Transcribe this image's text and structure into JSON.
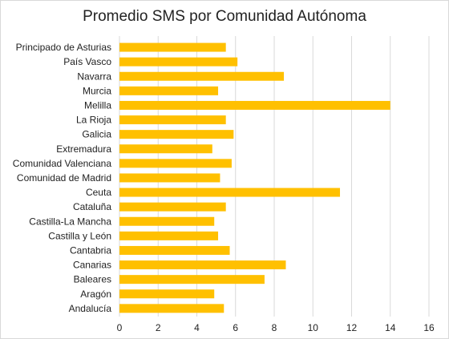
{
  "chart_data": {
    "type": "bar",
    "orientation": "horizontal",
    "title": "Promedio SMS por Comunidad Autónoma",
    "xlabel": "",
    "ylabel": "",
    "xlim": [
      0,
      16
    ],
    "xticks": [
      0,
      2,
      4,
      6,
      8,
      10,
      12,
      14,
      16
    ],
    "grid": "vertical",
    "legend": "none",
    "bar_color": "#FFC000",
    "grid_color": "#D9D9D9",
    "categories": [
      "Principado de Asturias",
      "País Vasco",
      "Navarra",
      "Murcia",
      "Melilla",
      "La Rioja",
      "Galicia",
      "Extremadura",
      "Comunidad Valenciana",
      "Comunidad de Madrid",
      "Ceuta",
      "Cataluña",
      "Castilla-La Mancha",
      "Castilla y León",
      "Cantabria",
      "Canarias",
      "Baleares",
      "Aragón",
      "Andalucía"
    ],
    "values": [
      5.5,
      6.1,
      8.5,
      5.1,
      14.0,
      5.5,
      5.9,
      4.8,
      5.8,
      5.2,
      11.4,
      5.5,
      4.9,
      5.1,
      5.7,
      8.6,
      7.5,
      4.9,
      5.4
    ]
  }
}
